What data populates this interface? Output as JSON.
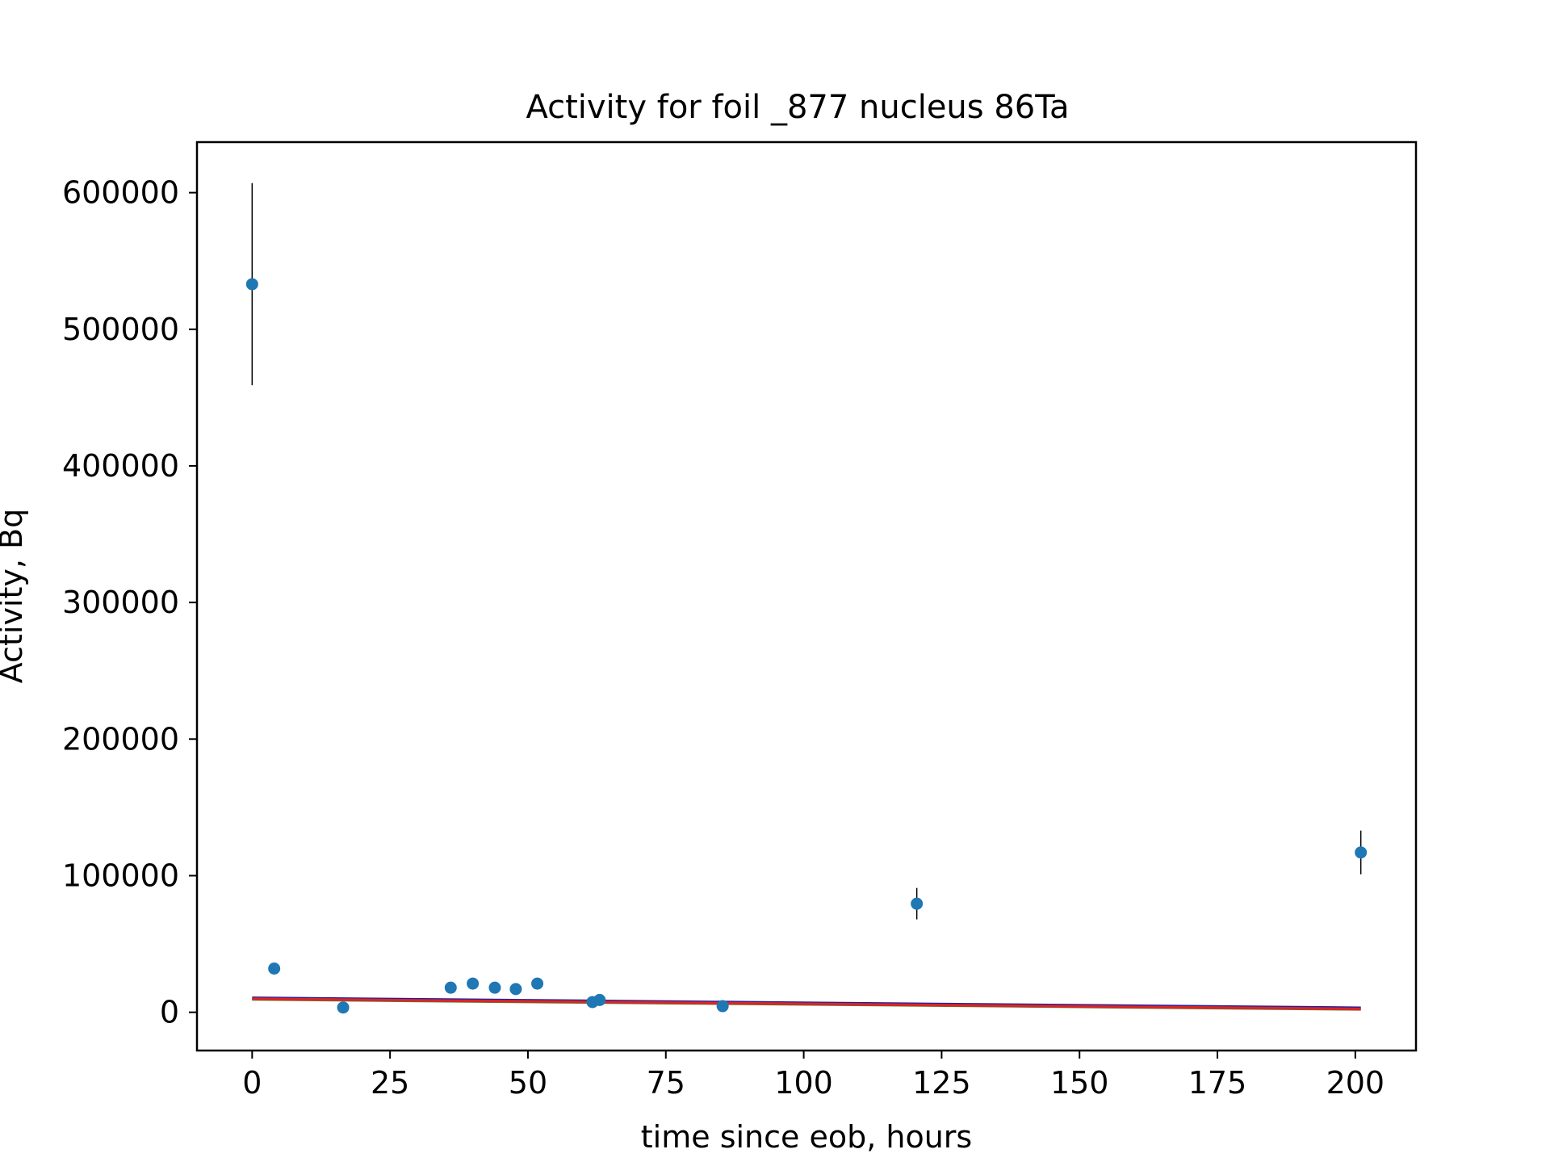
{
  "chart_data": {
    "type": "scatter",
    "title": "Activity for foil _877 nucleus 86Ta",
    "xlabel": "time since eob, hours",
    "ylabel": "Activity, Bq",
    "xlim": [
      -10,
      211
    ],
    "ylim": [
      -28000,
      637000
    ],
    "x_ticks": [
      0,
      25,
      50,
      75,
      100,
      125,
      150,
      175,
      200
    ],
    "y_ticks": [
      0,
      100000,
      200000,
      300000,
      400000,
      500000,
      600000
    ],
    "grid": false,
    "legend": "none",
    "points": [
      {
        "x": 0.0,
        "y": 533000,
        "err": 74000
      },
      {
        "x": 4.0,
        "y": 32000,
        "err": 0
      },
      {
        "x": 16.5,
        "y": 3500,
        "err": 0
      },
      {
        "x": 36.0,
        "y": 18000,
        "err": 0
      },
      {
        "x": 40.0,
        "y": 21000,
        "err": 0
      },
      {
        "x": 44.0,
        "y": 18000,
        "err": 0
      },
      {
        "x": 47.8,
        "y": 17000,
        "err": 0
      },
      {
        "x": 51.7,
        "y": 21000,
        "err": 0
      },
      {
        "x": 61.7,
        "y": 7500,
        "err": 0
      },
      {
        "x": 63.0,
        "y": 9000,
        "err": 0
      },
      {
        "x": 85.3,
        "y": 4500,
        "err": 0
      },
      {
        "x": 120.5,
        "y": 79500,
        "err": 11500
      },
      {
        "x": 201.0,
        "y": 117000,
        "err": 16000
      }
    ],
    "fit_lines": [
      {
        "color": "#2ca02c",
        "x": [
          0,
          201
        ],
        "y": [
          9500,
          2200
        ]
      },
      {
        "color": "#1f1f9f",
        "x": [
          0,
          201
        ],
        "y": [
          10500,
          3200
        ]
      },
      {
        "color": "#d62728",
        "x": [
          0,
          201
        ],
        "y": [
          9800,
          2400
        ]
      }
    ],
    "colors": {
      "points": "#1f77b4",
      "errorbars": "#000000"
    }
  }
}
